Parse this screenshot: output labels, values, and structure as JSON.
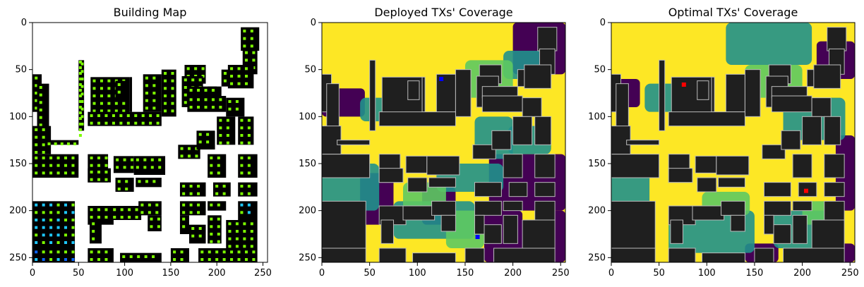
{
  "chart_data": [
    {
      "type": "heatmap",
      "title": "Building Map",
      "xlim": [
        0,
        255
      ],
      "ylim": [
        255,
        0
      ],
      "xticks": [
        0,
        50,
        100,
        150,
        200,
        250
      ],
      "yticks": [
        0,
        50,
        100,
        150,
        200,
        250
      ],
      "colors": {
        "background": "#ffffff",
        "building": "#000000",
        "grid_point": "#7cfc00",
        "grid_point_alt": "#1ec8ff",
        "grid_point_edge": "#0a64ff"
      },
      "buildings": [
        [
          226,
          5,
          246,
          30
        ],
        [
          228,
          28,
          244,
          55
        ],
        [
          0,
          55,
          10,
          95
        ],
        [
          5,
          65,
          18,
          130
        ],
        [
          50,
          40,
          56,
          115
        ],
        [
          63,
          58,
          105,
          100
        ],
        [
          90,
          62,
          102,
          82
        ],
        [
          105,
          58,
          108,
          95
        ],
        [
          107,
          58,
          104,
          80
        ],
        [
          120,
          55,
          140,
          95
        ],
        [
          140,
          50,
          156,
          100
        ],
        [
          165,
          45,
          188,
          65
        ],
        [
          162,
          57,
          185,
          90
        ],
        [
          190,
          68,
          200,
          85
        ],
        [
          205,
          50,
          226,
          68
        ],
        [
          212,
          45,
          240,
          70
        ],
        [
          0,
          110,
          20,
          140
        ],
        [
          16,
          125,
          50,
          130
        ],
        [
          60,
          95,
          140,
          110
        ],
        [
          168,
          68,
          205,
          80
        ],
        [
          168,
          78,
          210,
          95
        ],
        [
          210,
          80,
          230,
          100
        ],
        [
          200,
          100,
          220,
          130
        ],
        [
          223,
          100,
          240,
          130
        ],
        [
          158,
          130,
          182,
          145
        ],
        [
          178,
          115,
          198,
          135
        ],
        [
          0,
          140,
          50,
          165
        ],
        [
          60,
          140,
          82,
          170
        ],
        [
          88,
          142,
          110,
          160
        ],
        [
          110,
          142,
          144,
          162
        ],
        [
          190,
          140,
          210,
          165
        ],
        [
          223,
          140,
          244,
          165
        ],
        [
          60,
          155,
          85,
          170
        ],
        [
          90,
          165,
          110,
          180
        ],
        [
          112,
          165,
          140,
          175
        ],
        [
          160,
          170,
          188,
          185
        ],
        [
          196,
          170,
          215,
          185
        ],
        [
          223,
          170,
          244,
          185
        ],
        [
          60,
          195,
          88,
          215
        ],
        [
          0,
          190,
          46,
          240
        ],
        [
          62,
          210,
          75,
          235
        ],
        [
          85,
          195,
          118,
          210
        ],
        [
          115,
          190,
          140,
          205
        ],
        [
          125,
          205,
          140,
          222
        ],
        [
          160,
          190,
          188,
          205
        ],
        [
          190,
          190,
          210,
          200
        ],
        [
          223,
          190,
          244,
          210
        ],
        [
          160,
          205,
          170,
          225
        ],
        [
          170,
          215,
          188,
          235
        ],
        [
          210,
          210,
          244,
          240
        ],
        [
          0,
          240,
          46,
          255
        ],
        [
          60,
          240,
          88,
          255
        ],
        [
          95,
          245,
          140,
          255
        ],
        [
          150,
          240,
          170,
          255
        ],
        [
          180,
          240,
          244,
          255
        ],
        [
          190,
          205,
          205,
          235
        ]
      ]
    },
    {
      "type": "heatmap",
      "title": "Deployed TXs' Coverage",
      "xlim": [
        0,
        255
      ],
      "ylim": [
        255,
        0
      ],
      "xticks": [
        0,
        50,
        100,
        150,
        200,
        250
      ],
      "yticks": [
        0,
        50,
        100,
        150,
        200,
        250
      ],
      "colors": {
        "high": "#fde725",
        "mid_high": "#5ec962",
        "mid": "#21918c",
        "low": "#440154",
        "building": "#1f1f1f",
        "tx": "#0000ff"
      },
      "transmitters": [
        [
          125,
          60
        ],
        [
          163,
          228
        ]
      ]
    },
    {
      "type": "heatmap",
      "title": "Optimal TXs' Coverage",
      "xlim": [
        0,
        255
      ],
      "ylim": [
        255,
        0
      ],
      "xticks": [
        0,
        50,
        100,
        150,
        200,
        250
      ],
      "yticks": [
        0,
        50,
        100,
        150,
        200,
        250
      ],
      "colors": {
        "high": "#fde725",
        "mid_high": "#5ec962",
        "mid": "#21918c",
        "low": "#440154",
        "building": "#1f1f1f",
        "tx": "#ff0000"
      },
      "transmitters": [
        [
          76,
          66
        ],
        [
          204,
          179
        ]
      ]
    }
  ]
}
